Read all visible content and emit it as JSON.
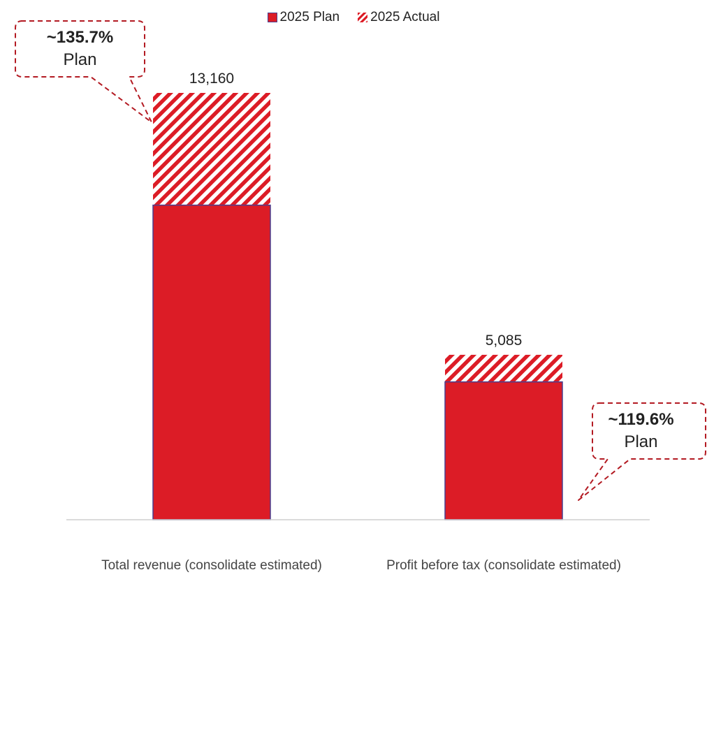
{
  "colors": {
    "plan": "#DC1C26",
    "plan_border": "#4a3f8f",
    "actual_hatch": "#DC1C26",
    "axis": "#cfcfcf",
    "callout_border": "#B31A22"
  },
  "legend": [
    {
      "label": "2025 Plan",
      "style": "solid"
    },
    {
      "label": "2025 Actual",
      "style": "hatched"
    }
  ],
  "callouts": [
    {
      "pct": "~135.7%",
      "sub": "Plan"
    },
    {
      "pct": "~119.6%",
      "sub": "Plan"
    }
  ],
  "chart_data": {
    "type": "bar",
    "stacked": true,
    "categories": [
      "Total revenue (consolidate estimated)",
      "Profit before tax (consolidate estimated)"
    ],
    "series": [
      {
        "name": "2025 Plan",
        "values": [
          9700,
          4250
        ]
      },
      {
        "name": "2025 Actual",
        "values": [
          3460,
          835
        ]
      }
    ],
    "totals": [
      13160,
      5085
    ],
    "total_labels": [
      "13,160",
      "5,085"
    ],
    "ylim": [
      0,
      13500
    ],
    "grid": false,
    "legend_position": "top-center"
  }
}
